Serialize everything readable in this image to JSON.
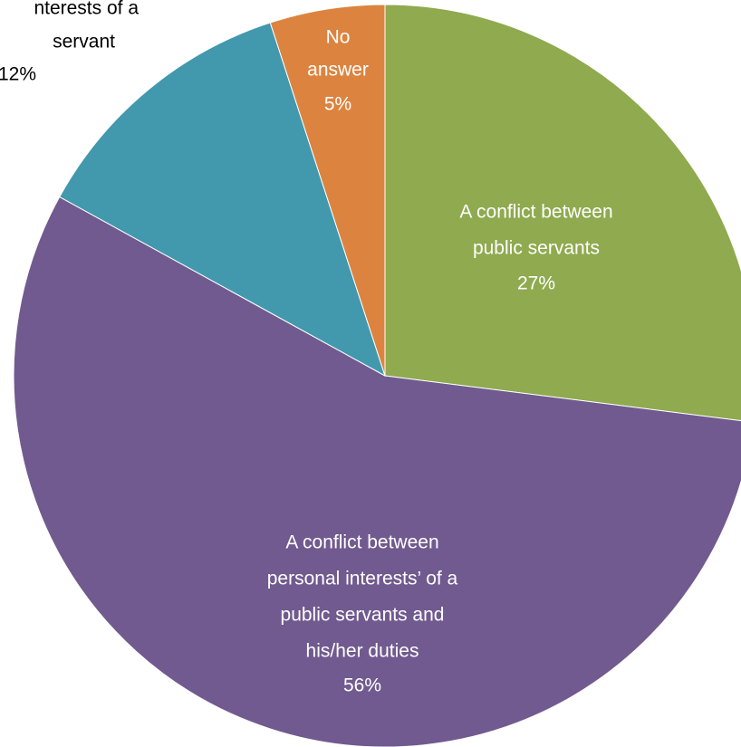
{
  "chart_data": {
    "type": "pie",
    "categories": [
      [
        "A conflict between",
        "public servants"
      ],
      [
        "A conflict between",
        "personal interests’ of a",
        "public servants and",
        "his/her duties"
      ],
      [
        "nterests of a",
        "servant"
      ],
      [
        "No",
        "answer"
      ]
    ],
    "values": [
      27,
      56,
      12,
      5
    ],
    "value_labels": [
      "27%",
      "56%",
      "12%",
      "5%"
    ],
    "colors": [
      "#8faa4f",
      "#715a8f",
      "#4298ad",
      "#dc843f"
    ]
  }
}
